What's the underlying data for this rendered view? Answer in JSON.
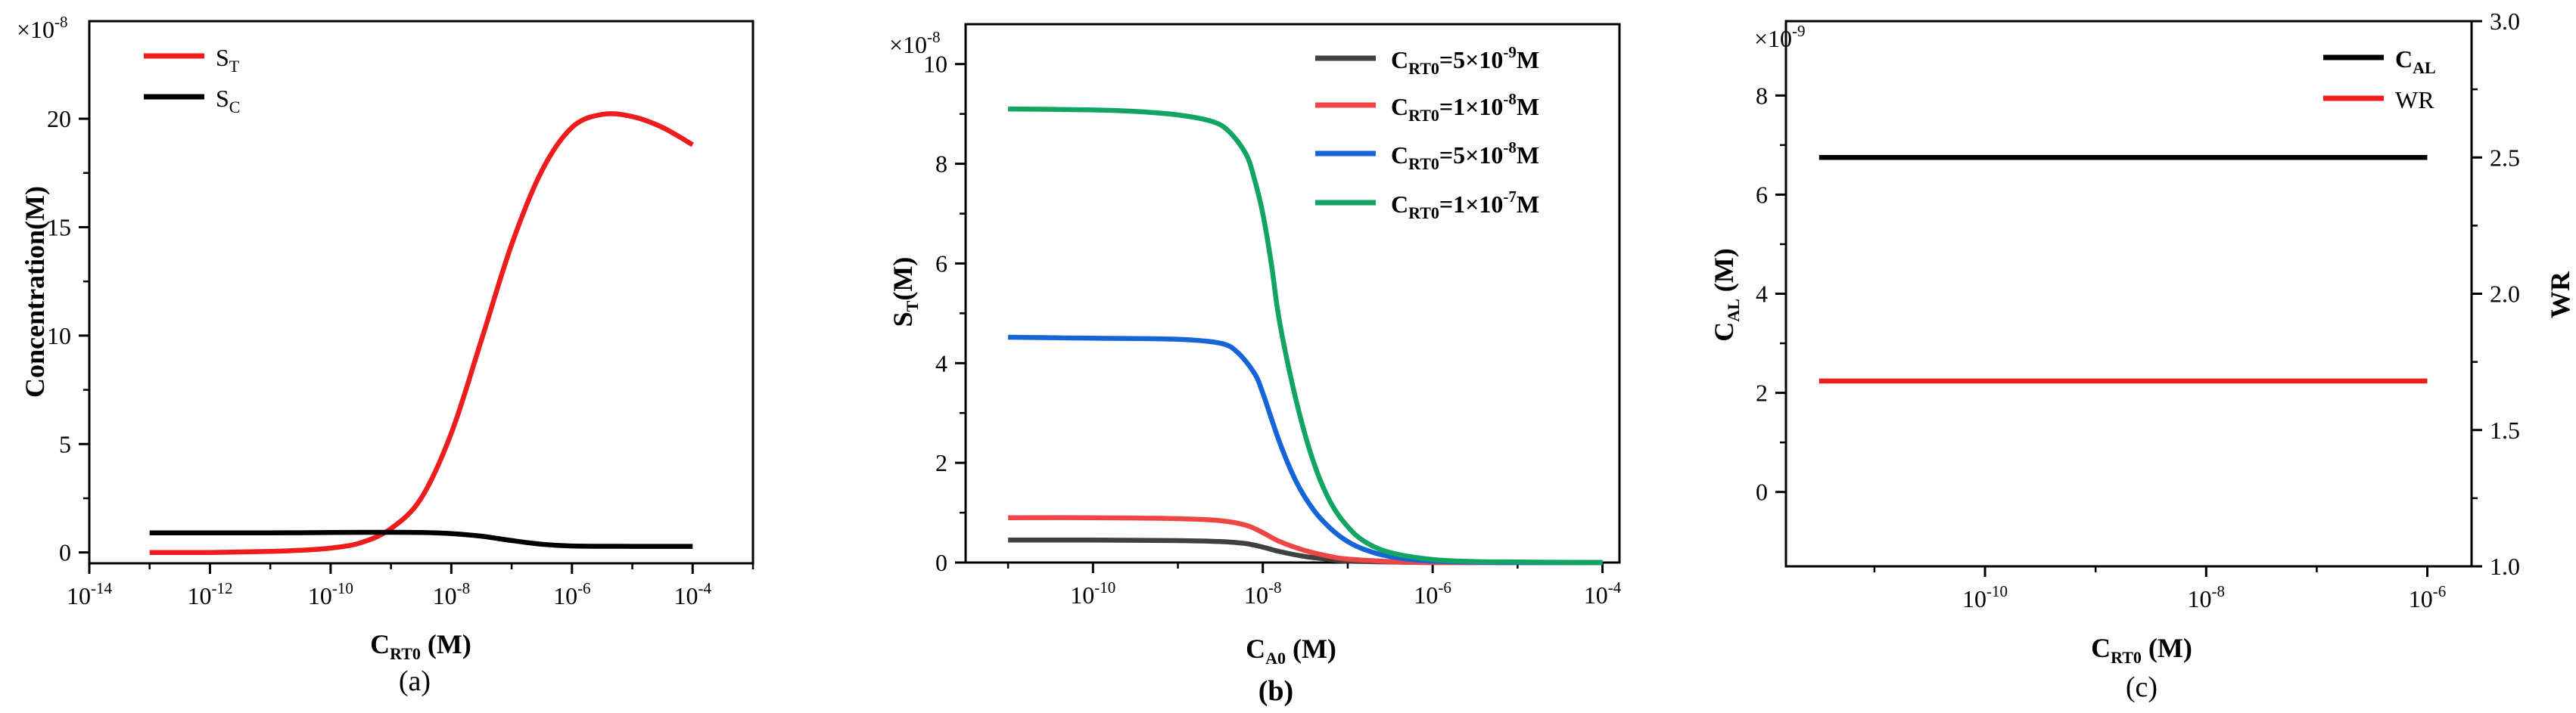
{
  "colors": {
    "red": "#ee1c1c",
    "black": "#000000",
    "dark_gray": "#404040",
    "light_red": "#f04545",
    "blue": "#1565d8",
    "green": "#12a463"
  },
  "chart_data": [
    {
      "type": "line",
      "xscale": "log",
      "xlim_exp": [
        -14,
        -3
      ],
      "ylim": [
        -0.5,
        24.5
      ],
      "x_tick_exps": [
        -14,
        -12,
        -10,
        -8,
        -6,
        -4
      ],
      "y_ticks": [
        0,
        5,
        10,
        15,
        20
      ],
      "y_tick_labels": [
        "0",
        "5",
        "10",
        "15",
        "20"
      ],
      "multiplier": "×10",
      "multiplier_exp": "-8",
      "xlabel": "C",
      "xlabel_sub": "RT0",
      "xlabel_unit": " (M)",
      "ylabel": "Concentration(M)",
      "caption": "(a)",
      "series": [
        {
          "name": "S",
          "name_sub": "T",
          "color": "#ee1c1c",
          "x_exp": [
            -13,
            -12,
            -11,
            -10.5,
            -10,
            -9.5,
            -9,
            -8.5,
            -8,
            -7.5,
            -7,
            -6.5,
            -6,
            -5.5,
            -5,
            -4.5,
            -4
          ],
          "y": [
            0,
            0,
            0.05,
            0.1,
            0.2,
            0.45,
            1.1,
            2.5,
            5.5,
            9.8,
            14.2,
            17.6,
            19.6,
            20.2,
            20.1,
            19.6,
            18.8
          ]
        },
        {
          "name": "S",
          "name_sub": "C",
          "color": "#000000",
          "x_exp": [
            -13,
            -12,
            -11,
            -10,
            -9,
            -8.5,
            -8,
            -7.5,
            -7,
            -6.5,
            -6,
            -5,
            -4
          ],
          "y": [
            0.9,
            0.9,
            0.9,
            0.92,
            0.93,
            0.92,
            0.87,
            0.75,
            0.55,
            0.38,
            0.3,
            0.28,
            0.28
          ]
        }
      ]
    },
    {
      "type": "line",
      "xscale": "log",
      "xlim_exp": [
        -11.5,
        -3.8
      ],
      "ylim": [
        0,
        10.8
      ],
      "x_tick_exps": [
        -10,
        -8,
        -6,
        -4
      ],
      "y_ticks": [
        0,
        2,
        4,
        6,
        8,
        10
      ],
      "y_tick_labels": [
        "0",
        "2",
        "4",
        "6",
        "8",
        "10"
      ],
      "multiplier": "×10",
      "multiplier_exp": "-8",
      "xlabel": "C",
      "xlabel_sub": "A0",
      "xlabel_unit": " (M)",
      "ylabel": "S",
      "ylabel_sub": "T",
      "ylabel_unit": "(M)",
      "caption": "(b)",
      "series": [
        {
          "name_pre": "C",
          "name_sub": "RT0",
          "name_mid": "=5×10",
          "name_exp": "-9",
          "name_post": "M",
          "color": "#404040",
          "x_exp": [
            -11,
            -10,
            -9,
            -8.5,
            -8.2,
            -8,
            -7.8,
            -7.5,
            -7.2,
            -7,
            -6.5,
            -6,
            -5,
            -4
          ],
          "y": [
            0.45,
            0.45,
            0.44,
            0.42,
            0.38,
            0.31,
            0.22,
            0.12,
            0.06,
            0.03,
            0.01,
            0.0,
            0.0,
            0.0
          ]
        },
        {
          "name_pre": "C",
          "name_sub": "RT0",
          "name_mid": "=1×10",
          "name_exp": "-8",
          "name_post": "M",
          "color": "#f04545",
          "x_exp": [
            -11,
            -10,
            -9,
            -8.5,
            -8.2,
            -8,
            -7.8,
            -7.5,
            -7.2,
            -7,
            -6.5,
            -6,
            -5,
            -4
          ],
          "y": [
            0.9,
            0.9,
            0.88,
            0.84,
            0.75,
            0.6,
            0.42,
            0.24,
            0.12,
            0.07,
            0.02,
            0.0,
            0.0,
            0.0
          ]
        },
        {
          "name_pre": "C",
          "name_sub": "RT0",
          "name_mid": "=5×10",
          "name_exp": "-8",
          "name_post": "M",
          "color": "#1565d8",
          "x_exp": [
            -11,
            -10,
            -9,
            -8.5,
            -8.3,
            -8.1,
            -8,
            -7.8,
            -7.6,
            -7.4,
            -7.2,
            -7,
            -6.8,
            -6.5,
            -6,
            -5,
            -4
          ],
          "y": [
            4.52,
            4.5,
            4.48,
            4.4,
            4.22,
            3.8,
            3.4,
            2.4,
            1.6,
            1.05,
            0.68,
            0.42,
            0.26,
            0.12,
            0.03,
            0.0,
            0.0
          ]
        },
        {
          "name_pre": "C",
          "name_sub": "RT0",
          "name_mid": "=1×10",
          "name_exp": "-7",
          "name_post": "M",
          "color": "#12a463",
          "x_exp": [
            -11,
            -10,
            -9.5,
            -9,
            -8.6,
            -8.4,
            -8.2,
            -8.1,
            -8,
            -7.9,
            -7.8,
            -7.6,
            -7.4,
            -7.2,
            -7,
            -6.8,
            -6.5,
            -6,
            -5.5,
            -5,
            -4
          ],
          "y": [
            9.1,
            9.08,
            9.05,
            8.98,
            8.85,
            8.65,
            8.2,
            7.7,
            7.0,
            6.0,
            4.8,
            3.2,
            2.0,
            1.2,
            0.72,
            0.42,
            0.2,
            0.06,
            0.02,
            0.01,
            0.0
          ]
        }
      ]
    },
    {
      "type": "line",
      "xscale": "log",
      "xlim_exp": [
        -11.8,
        -5.6
      ],
      "ylim": [
        -1.5,
        9.5
      ],
      "y2lim": [
        1.0,
        3.0
      ],
      "x_tick_exps": [
        -10,
        -8,
        -6
      ],
      "y_ticks": [
        0,
        2,
        4,
        6,
        8
      ],
      "y_tick_labels": [
        "0",
        "2",
        "4",
        "6",
        "8"
      ],
      "y2_ticks": [
        1.0,
        1.5,
        2.0,
        2.5,
        3.0
      ],
      "y2_tick_labels": [
        "1.0",
        "1.5",
        "2.0",
        "2.5",
        "3.0"
      ],
      "multiplier": "×10",
      "multiplier_exp": "-9",
      "xlabel": "C",
      "xlabel_sub": "RT0",
      "xlabel_unit": " (M)",
      "ylabel": "C",
      "ylabel_sub": "AL",
      "ylabel_unit": " (M)",
      "y2label": "WR",
      "caption": "(c)",
      "series": [
        {
          "name": "C",
          "name_sub": "AL",
          "color": "#000000",
          "axis": "left",
          "x_exp": [
            -11.5,
            -6
          ],
          "y": [
            6.75,
            6.75
          ]
        },
        {
          "name": "WR",
          "color": "#ee1c1c",
          "axis": "right",
          "x_exp": [
            -11.5,
            -6
          ],
          "y": [
            1.68,
            1.68
          ]
        }
      ]
    }
  ]
}
